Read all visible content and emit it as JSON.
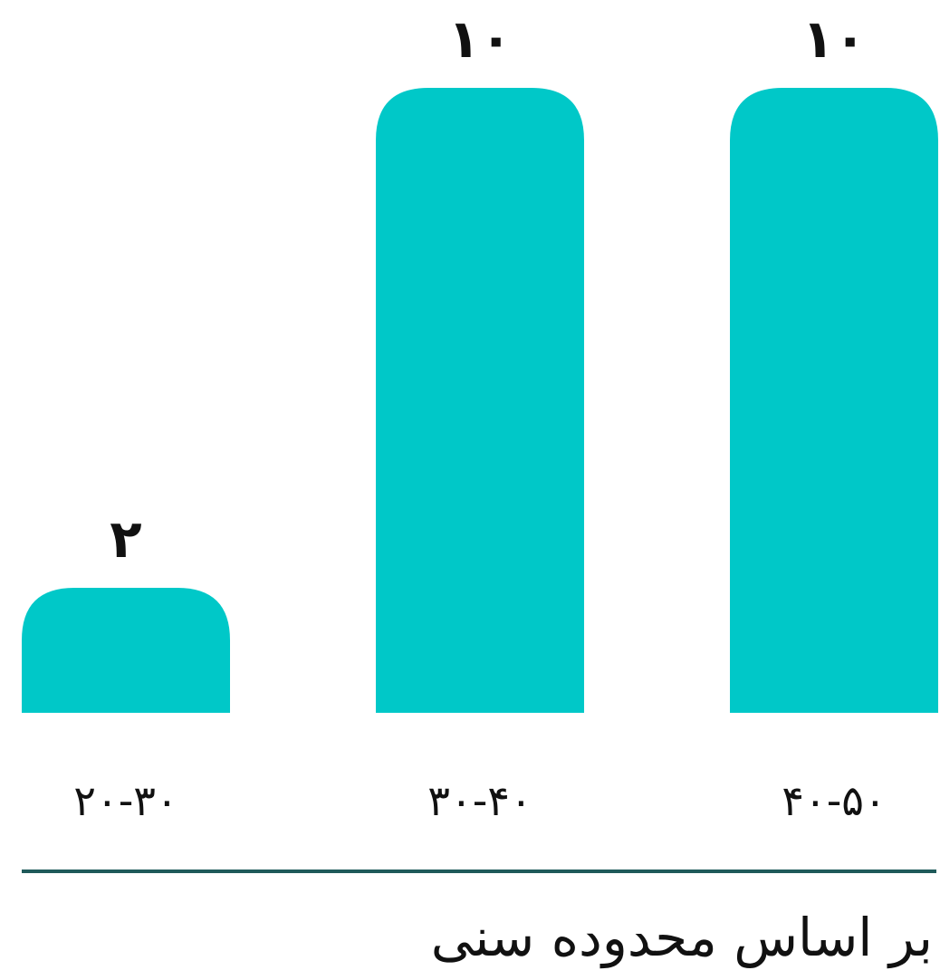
{
  "chart_data": {
    "type": "bar",
    "categories": [
      "۲۰-۳۰",
      "۳۰-۴۰",
      "۴۰-۵۰"
    ],
    "values": [
      2,
      10,
      10
    ],
    "value_labels": [
      "۲",
      "۱۰",
      "۱۰"
    ],
    "xlabel": "بر اساس محدوده سنی",
    "ylabel": "",
    "ylim": [
      0,
      10
    ],
    "grid": false,
    "legend": "none",
    "bar_color": "#00c8c8",
    "axis_color": "#1f5a5a"
  }
}
